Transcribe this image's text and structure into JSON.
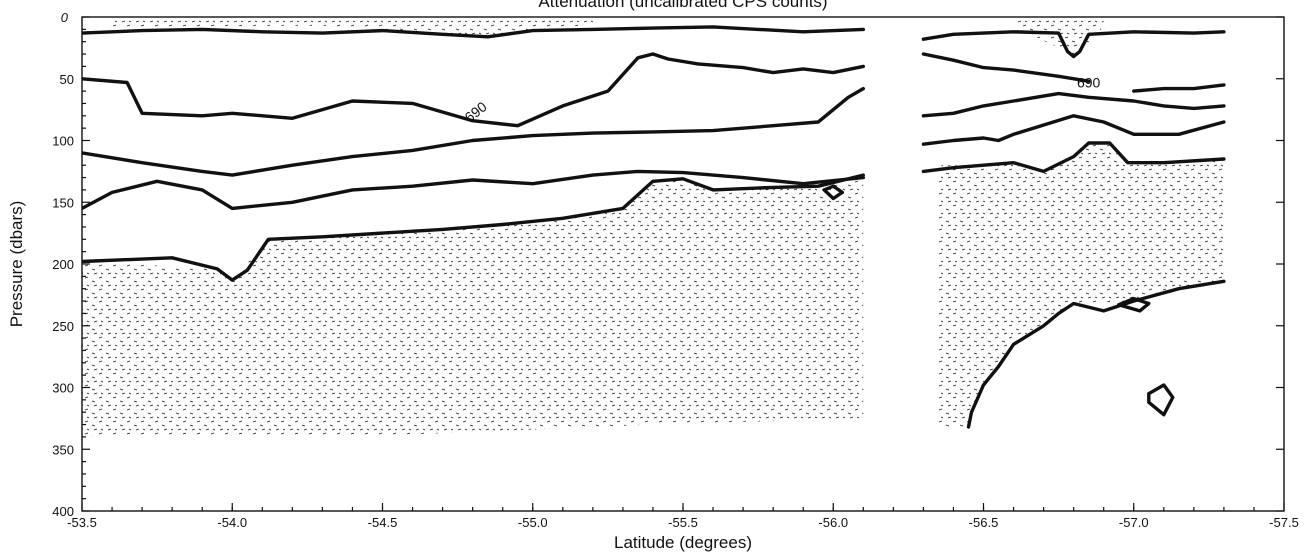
{
  "chart_data": {
    "type": "contour",
    "title": "Attenuation (uncalibrated CPS counts)",
    "xlabel": "Latitude (degrees)",
    "ylabel": "Pressure (dbars)",
    "xlim": [
      -53.5,
      -57.5
    ],
    "ylim": [
      400,
      0
    ],
    "x_ticks": [
      -53.5,
      -54.0,
      -54.5,
      -55.0,
      -55.5,
      -56.0,
      -56.5,
      -57.0,
      -57.5
    ],
    "x_tick_labels": [
      "-53.5",
      "-54.0",
      "-54.5",
      "-55.0",
      "-55.5",
      "-56.0",
      "-56.5",
      "-57.0",
      "-57.5"
    ],
    "y_ticks": [
      0,
      50,
      100,
      150,
      200,
      250,
      300,
      350,
      400
    ],
    "y_tick_labels": [
      "0",
      "50",
      "100",
      "150",
      "200",
      "250",
      "300",
      "350",
      "400"
    ],
    "contour_labels": [
      {
        "text": "690",
        "lat": -54.82,
        "pressure": 80
      },
      {
        "text": "690",
        "lat": -56.85,
        "pressure": 57
      }
    ],
    "panels": [
      {
        "lat_range": [
          -53.5,
          -56.1
        ],
        "contours": [
          {
            "points": [
              [
                -53.5,
                13
              ],
              [
                -53.7,
                11
              ],
              [
                -53.9,
                10
              ],
              [
                -54.1,
                12
              ],
              [
                -54.3,
                13
              ],
              [
                -54.5,
                11
              ],
              [
                -54.7,
                14
              ],
              [
                -54.85,
                16
              ],
              [
                -55.0,
                11
              ],
              [
                -55.2,
                10
              ],
              [
                -55.4,
                9
              ],
              [
                -55.6,
                8
              ],
              [
                -55.75,
                10
              ],
              [
                -55.9,
                12
              ],
              [
                -56.1,
                10
              ]
            ]
          },
          {
            "points": [
              [
                -53.5,
                50
              ],
              [
                -53.65,
                53
              ],
              [
                -53.7,
                78
              ],
              [
                -53.9,
                80
              ],
              [
                -54.0,
                78
              ],
              [
                -54.2,
                82
              ],
              [
                -54.4,
                68
              ],
              [
                -54.6,
                70
              ],
              [
                -54.8,
                84
              ],
              [
                -54.95,
                88
              ],
              [
                -55.1,
                72
              ],
              [
                -55.25,
                60
              ],
              [
                -55.35,
                33
              ],
              [
                -55.4,
                30
              ],
              [
                -55.45,
                34
              ],
              [
                -55.55,
                38
              ],
              [
                -55.7,
                41
              ],
              [
                -55.8,
                45
              ],
              [
                -55.9,
                42
              ],
              [
                -56.0,
                45
              ],
              [
                -56.1,
                40
              ]
            ]
          },
          {
            "points": [
              [
                -53.5,
                110
              ],
              [
                -53.7,
                118
              ],
              [
                -53.9,
                125
              ],
              [
                -54.0,
                128
              ],
              [
                -54.2,
                120
              ],
              [
                -54.4,
                113
              ],
              [
                -54.6,
                108
              ],
              [
                -54.8,
                100
              ],
              [
                -55.0,
                96
              ],
              [
                -55.2,
                94
              ],
              [
                -55.4,
                93
              ],
              [
                -55.6,
                92
              ],
              [
                -55.8,
                88
              ],
              [
                -55.95,
                85
              ],
              [
                -56.05,
                65
              ],
              [
                -56.1,
                58
              ]
            ]
          },
          {
            "points": [
              [
                -53.5,
                155
              ],
              [
                -53.6,
                142
              ],
              [
                -53.75,
                133
              ],
              [
                -53.9,
                140
              ],
              [
                -54.0,
                155
              ],
              [
                -54.2,
                150
              ],
              [
                -54.4,
                140
              ],
              [
                -54.6,
                137
              ],
              [
                -54.8,
                132
              ],
              [
                -55.0,
                135
              ],
              [
                -55.2,
                128
              ],
              [
                -55.35,
                125
              ],
              [
                -55.5,
                126
              ],
              [
                -55.7,
                130
              ],
              [
                -55.9,
                135
              ],
              [
                -56.1,
                130
              ]
            ]
          },
          {
            "points": [
              [
                -53.5,
                198
              ],
              [
                -53.8,
                195
              ],
              [
                -53.95,
                204
              ],
              [
                -54.0,
                213
              ],
              [
                -54.05,
                205
              ],
              [
                -54.12,
                180
              ],
              [
                -54.3,
                178
              ],
              [
                -54.5,
                175
              ],
              [
                -54.7,
                172
              ],
              [
                -54.9,
                168
              ],
              [
                -55.1,
                163
              ],
              [
                -55.3,
                155
              ],
              [
                -55.4,
                133
              ],
              [
                -55.5,
                131
              ],
              [
                -55.6,
                140
              ],
              [
                -55.8,
                138
              ],
              [
                -55.95,
                137
              ],
              [
                -56.1,
                128
              ]
            ]
          },
          {
            "points": [
              [
                -55.97,
                140
              ],
              [
                -56.0,
                137
              ],
              [
                -56.03,
                142
              ],
              [
                -56.0,
                147
              ],
              [
                -55.97,
                140
              ]
            ]
          }
        ]
      },
      {
        "lat_range": [
          -56.3,
          -57.3
        ],
        "contours": [
          {
            "points": [
              [
                -56.3,
                18
              ],
              [
                -56.4,
                14
              ],
              [
                -56.6,
                12
              ],
              [
                -56.75,
                13
              ],
              [
                -56.78,
                28
              ],
              [
                -56.8,
                32
              ],
              [
                -56.82,
                28
              ],
              [
                -56.85,
                14
              ],
              [
                -57.0,
                12
              ],
              [
                -57.2,
                13
              ],
              [
                -57.3,
                12
              ]
            ]
          },
          {
            "points": [
              [
                -56.3,
                30
              ],
              [
                -56.4,
                35
              ],
              [
                -56.5,
                41
              ],
              [
                -56.6,
                43
              ],
              [
                -56.75,
                48
              ],
              [
                -56.85,
                52
              ]
            ]
          },
          {
            "points": [
              [
                -57.0,
                60
              ],
              [
                -57.1,
                58
              ],
              [
                -57.2,
                58
              ],
              [
                -57.3,
                55
              ]
            ]
          },
          {
            "points": [
              [
                -56.3,
                80
              ],
              [
                -56.4,
                78
              ],
              [
                -56.5,
                72
              ],
              [
                -56.6,
                68
              ],
              [
                -56.75,
                62
              ],
              [
                -56.85,
                65
              ],
              [
                -57.0,
                68
              ],
              [
                -57.1,
                72
              ],
              [
                -57.2,
                74
              ],
              [
                -57.3,
                72
              ]
            ]
          },
          {
            "points": [
              [
                -56.3,
                103
              ],
              [
                -56.4,
                100
              ],
              [
                -56.5,
                98
              ],
              [
                -56.55,
                100
              ],
              [
                -56.6,
                95
              ],
              [
                -56.8,
                80
              ],
              [
                -56.9,
                85
              ],
              [
                -57.0,
                95
              ],
              [
                -57.15,
                95
              ],
              [
                -57.3,
                85
              ]
            ]
          },
          {
            "points": [
              [
                -56.3,
                125
              ],
              [
                -56.4,
                122
              ],
              [
                -56.5,
                120
              ],
              [
                -56.6,
                118
              ],
              [
                -56.7,
                125
              ],
              [
                -56.8,
                113
              ],
              [
                -56.85,
                102
              ],
              [
                -56.92,
                102
              ],
              [
                -56.98,
                118
              ],
              [
                -57.1,
                118
              ],
              [
                -57.3,
                115
              ]
            ]
          },
          {
            "points": [
              [
                -56.45,
                332
              ],
              [
                -56.46,
                320
              ],
              [
                -56.5,
                298
              ],
              [
                -56.55,
                283
              ],
              [
                -56.6,
                265
              ],
              [
                -56.7,
                250
              ],
              [
                -56.75,
                240
              ],
              [
                -56.8,
                232
              ],
              [
                -56.9,
                238
              ],
              [
                -57.0,
                230
              ],
              [
                -57.15,
                220
              ],
              [
                -57.3,
                214
              ]
            ]
          },
          {
            "points": [
              [
                -56.95,
                233
              ],
              [
                -57.0,
                228
              ],
              [
                -57.05,
                232
              ],
              [
                -57.02,
                238
              ],
              [
                -56.95,
                233
              ]
            ]
          },
          {
            "points": [
              [
                -57.05,
                305
              ],
              [
                -57.1,
                298
              ],
              [
                -57.13,
                308
              ],
              [
                -57.1,
                322
              ],
              [
                -57.05,
                312
              ],
              [
                -57.05,
                305
              ]
            ]
          }
        ]
      }
    ],
    "stipple_regions": [
      {
        "points": [
          [
            -53.5,
            198
          ],
          [
            -53.95,
            204
          ],
          [
            -54.0,
            213
          ],
          [
            -54.12,
            180
          ],
          [
            -54.5,
            175
          ],
          [
            -54.9,
            168
          ],
          [
            -55.3,
            155
          ],
          [
            -55.4,
            133
          ],
          [
            -55.5,
            131
          ],
          [
            -55.6,
            140
          ],
          [
            -55.95,
            137
          ],
          [
            -56.1,
            128
          ],
          [
            -56.1,
            325
          ],
          [
            -55.4,
            330
          ],
          [
            -54.6,
            338
          ],
          [
            -53.5,
            340
          ]
        ]
      },
      {
        "points": [
          [
            -56.35,
            120
          ],
          [
            -56.5,
            120
          ],
          [
            -56.6,
            118
          ],
          [
            -56.7,
            125
          ],
          [
            -56.8,
            113
          ],
          [
            -56.85,
            102
          ],
          [
            -56.92,
            102
          ],
          [
            -56.98,
            118
          ],
          [
            -57.3,
            115
          ],
          [
            -57.3,
            214
          ],
          [
            -57.0,
            230
          ],
          [
            -56.8,
            232
          ],
          [
            -56.6,
            265
          ],
          [
            -56.5,
            298
          ],
          [
            -56.45,
            332
          ],
          [
            -56.35,
            332
          ]
        ]
      },
      {
        "points": [
          [
            -53.6,
            8
          ],
          [
            -54.3,
            7
          ],
          [
            -54.85,
            16
          ],
          [
            -55.0,
            11
          ],
          [
            -55.2,
            6
          ],
          [
            -55.2,
            2
          ],
          [
            -53.6,
            2
          ]
        ]
      },
      {
        "points": [
          [
            -56.6,
            8
          ],
          [
            -56.78,
            28
          ],
          [
            -56.8,
            32
          ],
          [
            -56.82,
            28
          ],
          [
            -56.9,
            8
          ],
          [
            -56.9,
            2
          ],
          [
            -56.6,
            2
          ]
        ]
      }
    ]
  }
}
